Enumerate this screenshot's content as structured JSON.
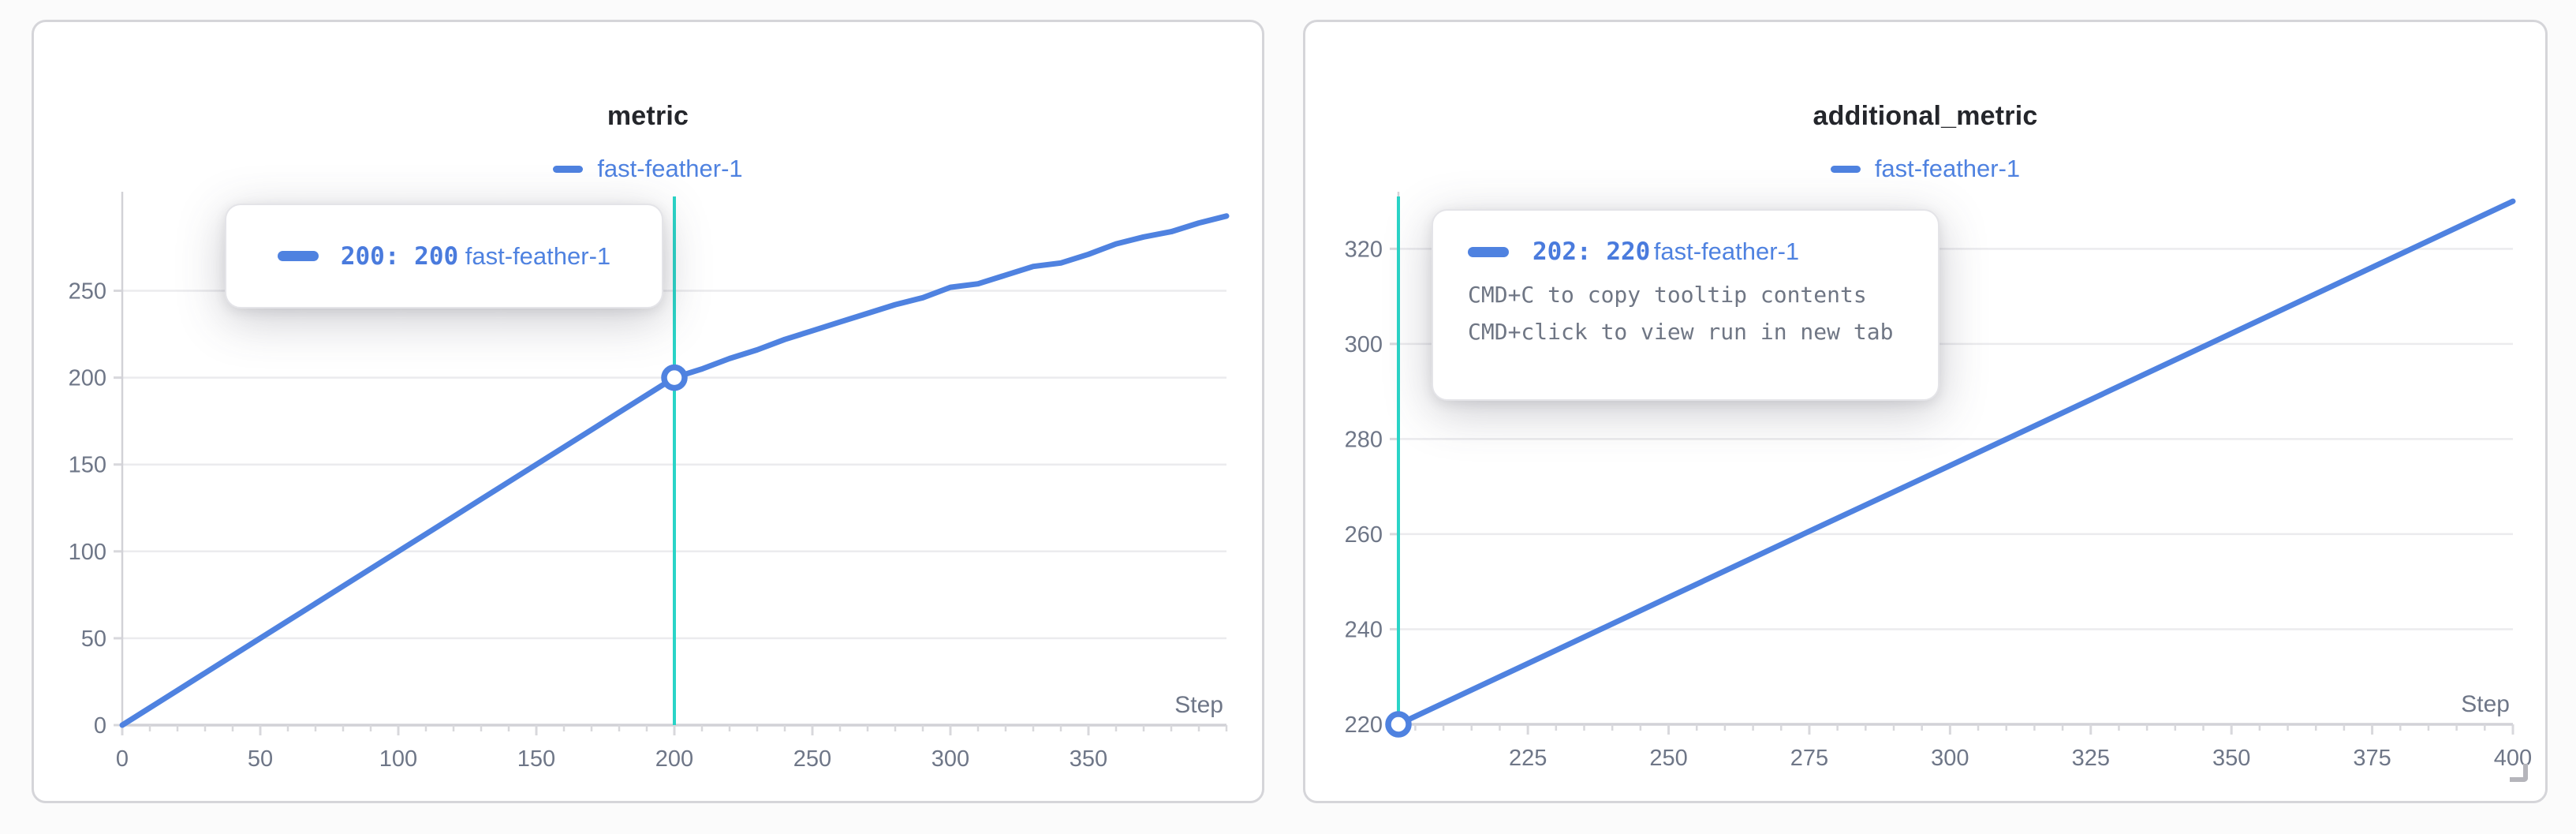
{
  "colors": {
    "series_blue": "#4f82e0",
    "crosshair_teal": "#2ad4c7",
    "grid": "#ebebee",
    "axis": "#d2d2d7",
    "tick_stub": "#d8d8dc",
    "tick_label": "#6e7687",
    "title_text": "#24262b",
    "tooltip_hint_text": "#6f7684",
    "page_background": "#fbfbfb",
    "card_background": "#ffffff"
  },
  "chart_data": [
    {
      "type": "line",
      "title": "metric",
      "legend": [
        "fast-feather-1"
      ],
      "xlabel": "Step",
      "x_ticks": [
        0,
        50,
        100,
        150,
        200,
        250,
        300,
        350
      ],
      "x_minor_tick_step": 10,
      "y_ticks": [
        0,
        50,
        100,
        150,
        200,
        250
      ],
      "xlim": [
        0,
        400
      ],
      "ylim": [
        0,
        307
      ],
      "grid": true,
      "legend_position": "top",
      "series": [
        {
          "name": "fast-feather-1",
          "color": "#4f82e0",
          "x": [
            0,
            10,
            20,
            30,
            40,
            50,
            60,
            70,
            80,
            90,
            100,
            110,
            120,
            130,
            140,
            150,
            160,
            170,
            180,
            190,
            200,
            210,
            220,
            230,
            240,
            250,
            260,
            270,
            280,
            290,
            300,
            310,
            320,
            330,
            340,
            350,
            360,
            370,
            380,
            390,
            400
          ],
          "y": [
            0,
            10,
            20,
            30,
            40,
            50,
            60,
            70,
            80,
            90,
            100,
            110,
            120,
            130,
            140,
            150,
            160,
            170,
            180,
            190,
            200,
            205,
            211,
            216,
            222,
            227,
            232,
            237,
            242,
            246,
            252,
            254,
            259,
            264,
            266,
            271,
            277,
            281,
            284,
            289,
            293
          ]
        }
      ],
      "crosshair_x": 200,
      "highlight_point": {
        "x": 200,
        "y": 200
      }
    },
    {
      "type": "line",
      "title": "additional_metric",
      "legend": [
        "fast-feather-1"
      ],
      "xlabel": "Step",
      "x_ticks": [
        225,
        250,
        275,
        300,
        325,
        350,
        375,
        400
      ],
      "x_minor_tick_step": 5,
      "y_ticks": [
        220,
        240,
        260,
        280,
        300,
        320
      ],
      "xlim": [
        202,
        400
      ],
      "ylim": [
        220,
        332
      ],
      "grid": true,
      "legend_position": "top",
      "series": [
        {
          "name": "fast-feather-1",
          "color": "#4f82e0",
          "x": [
            202,
            225,
            250,
            275,
            300,
            325,
            350,
            375,
            400
          ],
          "y": [
            220,
            232.8,
            246.7,
            260.6,
            274.4,
            288.3,
            302.2,
            316.1,
            330
          ]
        }
      ],
      "crosshair_x": 202,
      "highlight_point": {
        "x": 202,
        "y": 220
      }
    }
  ],
  "ui": {
    "tooltips": [
      {
        "value": "200: 200",
        "run": "fast-feather-1"
      },
      {
        "value": "202: 220",
        "run": "fast-feather-1",
        "hints": [
          "CMD+C to copy tooltip contents",
          "CMD+click to view run in new tab"
        ]
      }
    ]
  }
}
